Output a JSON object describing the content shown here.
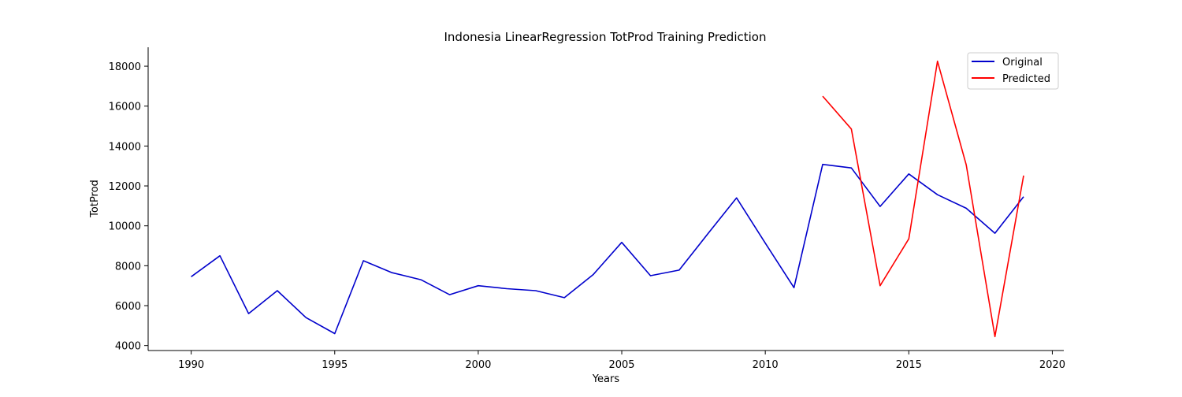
{
  "chart_data": {
    "type": "line",
    "title": "Indonesia LinearRegression TotProd Training Prediction",
    "xlabel": "Years",
    "ylabel": "TotProd",
    "xlim": [
      1988.5,
      2020.4
    ],
    "ylim": [
      3750,
      18950
    ],
    "xticks": [
      1990,
      1995,
      2000,
      2005,
      2010,
      2015,
      2020
    ],
    "yticks": [
      4000,
      6000,
      8000,
      10000,
      12000,
      14000,
      16000,
      18000
    ],
    "grid": false,
    "legend_position": "upper right",
    "series": [
      {
        "name": "Original",
        "color": "#0000cc",
        "x": [
          1990,
          1991,
          1992,
          1993,
          1994,
          1995,
          1996,
          1997,
          1998,
          1999,
          2000,
          2001,
          2002,
          2003,
          2004,
          2005,
          2006,
          2007,
          2008,
          2009,
          2010,
          2011,
          2012,
          2013,
          2014,
          2015,
          2016,
          2017,
          2018,
          2019
        ],
        "y": [
          7450,
          8500,
          5600,
          6750,
          5400,
          4600,
          8250,
          7650,
          7300,
          6550,
          7000,
          6850,
          6750,
          6400,
          7550,
          9170,
          7500,
          7780,
          9600,
          11400,
          9130,
          6900,
          13080,
          12900,
          10970,
          12600,
          11560,
          10880,
          9630,
          11460
        ]
      },
      {
        "name": "Predicted",
        "color": "#ff0000",
        "x": [
          2012,
          2013,
          2014,
          2015,
          2016,
          2017,
          2018,
          2019
        ],
        "y": [
          16500,
          14850,
          7000,
          9350,
          18250,
          13050,
          4450,
          12520
        ]
      }
    ]
  }
}
